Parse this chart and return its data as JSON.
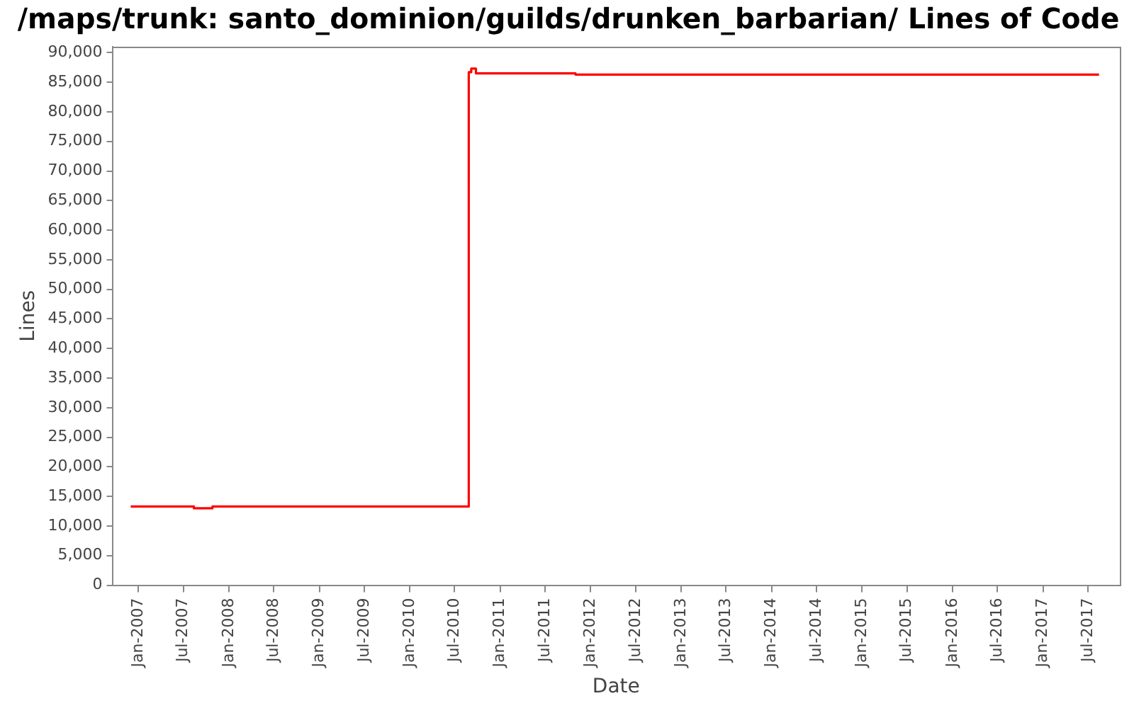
{
  "chart_data": {
    "type": "step",
    "title": "/maps/trunk: santo_dominion/guilds/drunken_barbarian/ Lines of Code",
    "xlabel": "Date",
    "ylabel": "Lines",
    "x": [
      "2006-12-01",
      "2007-08-13",
      "2007-10-27",
      "2010-08-27",
      "2010-09-06",
      "2010-09-25",
      "2011-11-01",
      "2017-08-15"
    ],
    "values": [
      13300,
      13000,
      13300,
      86700,
      87300,
      86500,
      86300,
      86300
    ],
    "color": "#ff0000",
    "xlim": [
      "2006-09-18",
      "2017-11-07"
    ],
    "xticks": [
      {
        "value": "2007-01",
        "label": "Jan-2007"
      },
      {
        "value": "2007-07",
        "label": "Jul-2007"
      },
      {
        "value": "2008-01",
        "label": "Jan-2008"
      },
      {
        "value": "2008-07",
        "label": "Jul-2008"
      },
      {
        "value": "2009-01",
        "label": "Jan-2009"
      },
      {
        "value": "2009-07",
        "label": "Jul-2009"
      },
      {
        "value": "2010-01",
        "label": "Jan-2010"
      },
      {
        "value": "2010-07",
        "label": "Jul-2010"
      },
      {
        "value": "2011-01",
        "label": "Jan-2011"
      },
      {
        "value": "2011-07",
        "label": "Jul-2011"
      },
      {
        "value": "2012-01",
        "label": "Jan-2012"
      },
      {
        "value": "2012-07",
        "label": "Jul-2012"
      },
      {
        "value": "2013-01",
        "label": "Jan-2013"
      },
      {
        "value": "2013-07",
        "label": "Jul-2013"
      },
      {
        "value": "2014-01",
        "label": "Jan-2014"
      },
      {
        "value": "2014-07",
        "label": "Jul-2014"
      },
      {
        "value": "2015-01",
        "label": "Jan-2015"
      },
      {
        "value": "2015-07",
        "label": "Jul-2015"
      },
      {
        "value": "2016-01",
        "label": "Jan-2016"
      },
      {
        "value": "2016-07",
        "label": "Jul-2016"
      },
      {
        "value": "2017-01",
        "label": "Jan-2017"
      },
      {
        "value": "2017-07",
        "label": "Jul-2017"
      }
    ],
    "ylim": [
      0,
      91000
    ],
    "yticks": [
      0,
      {
        "value": 5000,
        "label": "5,000"
      },
      {
        "value": 10000,
        "label": "10,000"
      },
      {
        "value": 15000,
        "label": "15,000"
      },
      {
        "value": 20000,
        "label": "20,000"
      },
      {
        "value": 25000,
        "label": "25,000"
      },
      {
        "value": 30000,
        "label": "30,000"
      },
      {
        "value": 35000,
        "label": "35,000"
      },
      {
        "value": 40000,
        "label": "40,000"
      },
      {
        "value": 45000,
        "label": "45,000"
      },
      {
        "value": 50000,
        "label": "50,000"
      },
      {
        "value": 55000,
        "label": "55,000"
      },
      {
        "value": 60000,
        "label": "60,000"
      },
      {
        "value": 65000,
        "label": "65,000"
      },
      {
        "value": 70000,
        "label": "70,000"
      },
      {
        "value": 75000,
        "label": "75,000"
      },
      {
        "value": 80000,
        "label": "80,000"
      },
      {
        "value": 85000,
        "label": "85,000"
      },
      {
        "value": 90000,
        "label": "90,000"
      }
    ],
    "grid": false,
    "legend": false,
    "marker": "none"
  }
}
